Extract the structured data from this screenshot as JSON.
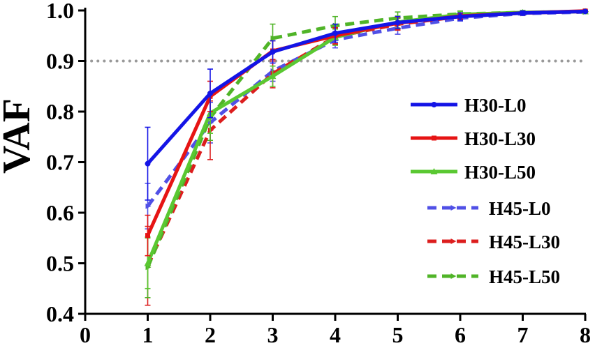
{
  "chart_data": {
    "type": "line",
    "title": "",
    "xlabel": "",
    "ylabel": "VAF",
    "xlim": [
      0,
      8
    ],
    "ylim": [
      0.4,
      1.0
    ],
    "xticks": [
      "0",
      "1",
      "2",
      "3",
      "4",
      "5",
      "6",
      "7",
      "8"
    ],
    "yticks": [
      "0.4",
      "0.5",
      "0.6",
      "0.7",
      "0.8",
      "0.9",
      "1.0"
    ],
    "reference_line": {
      "y": 0.9,
      "style": "dotted",
      "color": "#999999"
    },
    "grid": false,
    "legend_position": "right",
    "x": [
      1,
      2,
      3,
      4,
      5,
      6,
      7,
      8
    ],
    "series": [
      {
        "name": "H30-L0",
        "color": "#1414e6",
        "dashed": false,
        "marker": "circle",
        "values": [
          0.697,
          0.836,
          0.918,
          0.955,
          0.976,
          0.988,
          0.995,
          0.998
        ],
        "errors": [
          0.072,
          0.048,
          0.022,
          0.018,
          0.012,
          0.007,
          0.004,
          0.002
        ]
      },
      {
        "name": "H30-L30",
        "color": "#e61414",
        "dashed": false,
        "marker": "square",
        "values": [
          0.555,
          0.83,
          0.92,
          0.95,
          0.975,
          0.989,
          0.995,
          0.999
        ],
        "errors": [
          0.04,
          0.03,
          0.02,
          0.016,
          0.012,
          0.006,
          0.004,
          0.002
        ]
      },
      {
        "name": "H30-L50",
        "color": "#5ac832",
        "dashed": false,
        "marker": "triangle",
        "values": [
          0.5,
          0.797,
          0.87,
          0.947,
          0.977,
          0.992,
          0.996,
          0.998
        ],
        "errors": [
          0.05,
          0.04,
          0.02,
          0.016,
          0.012,
          0.006,
          0.004,
          0.002
        ]
      },
      {
        "name": "H45-L0",
        "color": "#5050e6",
        "dashed": true,
        "marker": "arrow",
        "values": [
          0.613,
          0.778,
          0.88,
          0.942,
          0.965,
          0.985,
          0.994,
          0.997
        ],
        "errors": [
          0.045,
          0.04,
          0.02,
          0.016,
          0.012,
          0.006,
          0.004,
          0.002
        ]
      },
      {
        "name": "H45-L30",
        "color": "#dc1e1e",
        "dashed": true,
        "marker": "arrow",
        "values": [
          0.495,
          0.763,
          0.875,
          0.948,
          0.973,
          0.988,
          0.995,
          0.998
        ],
        "errors": [
          0.078,
          0.058,
          0.028,
          0.016,
          0.012,
          0.006,
          0.004,
          0.002
        ]
      },
      {
        "name": "H45-L50",
        "color": "#50b428",
        "dashed": true,
        "marker": "arrow",
        "values": [
          0.492,
          0.788,
          0.945,
          0.97,
          0.985,
          0.993,
          0.996,
          0.998
        ],
        "errors": [
          0.06,
          0.045,
          0.028,
          0.018,
          0.012,
          0.006,
          0.004,
          0.002
        ]
      }
    ]
  }
}
